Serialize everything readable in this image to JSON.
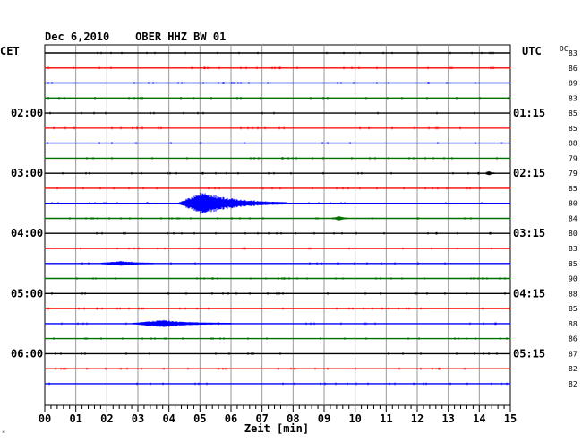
{
  "chart_data": {
    "type": "line",
    "title": "Dec 6,2010    OBER HHZ BW 01",
    "left_timezone": "CET",
    "right_timezone": "UTC",
    "dc_label": "DC",
    "xlabel": "Zeit [min]",
    "xlim": [
      0,
      15
    ],
    "x_ticks": [
      "00",
      "01",
      "02",
      "03",
      "04",
      "05",
      "06",
      "07",
      "08",
      "09",
      "10",
      "11",
      "12",
      "13",
      "14",
      "15"
    ],
    "trace_colors": [
      "#000000",
      "#ff0000",
      "#0000ff",
      "#007000"
    ],
    "left_hour_labels": [
      {
        "trace": 4,
        "label": "02:00"
      },
      {
        "trace": 8,
        "label": "03:00"
      },
      {
        "trace": 12,
        "label": "04:00"
      },
      {
        "trace": 16,
        "label": "05:00"
      },
      {
        "trace": 20,
        "label": "06:00"
      }
    ],
    "right_hour_labels": [
      {
        "trace": 4,
        "label": "01:15"
      },
      {
        "trace": 8,
        "label": "02:15"
      },
      {
        "trace": 12,
        "label": "03:15"
      },
      {
        "trace": 16,
        "label": "04:15"
      },
      {
        "trace": 20,
        "label": "05:15"
      }
    ],
    "dc_values": [
      "83",
      "86",
      "89",
      "83",
      "85",
      "85",
      "88",
      "79",
      "79",
      "85",
      "80",
      "84",
      "80",
      "83",
      "85",
      "90",
      "88",
      "85",
      "88",
      "86",
      "87",
      "82",
      "82"
    ],
    "events": [
      {
        "trace": 10,
        "start_min": 4.3,
        "peak_min": 5.1,
        "end_min": 7.8,
        "amplitude": "large"
      },
      {
        "trace": 18,
        "start_min": 2.8,
        "peak_min": 3.8,
        "end_min": 6.0,
        "amplitude": "small"
      },
      {
        "trace": 14,
        "start_min": 1.8,
        "peak_min": 2.5,
        "end_min": 3.5,
        "amplitude": "tiny"
      },
      {
        "trace": 11,
        "start_min": 9.3,
        "peak_min": 9.5,
        "end_min": 9.8,
        "amplitude": "tiny"
      },
      {
        "trace": 8,
        "start_min": 14.2,
        "peak_min": 14.3,
        "end_min": 14.5,
        "amplitude": "tiny"
      }
    ]
  }
}
